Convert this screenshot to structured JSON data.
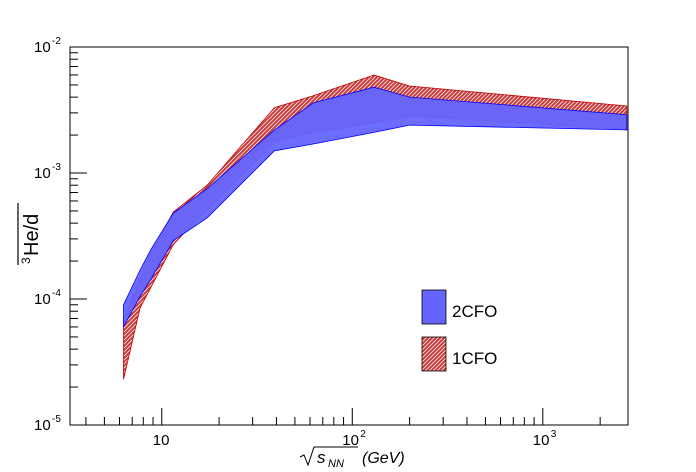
{
  "chart_data": {
    "type": "area",
    "title": "",
    "xscale": "log",
    "yscale": "log",
    "xlim": [
      3.3,
      2800
    ],
    "ylim": [
      1e-05,
      0.01
    ],
    "xlabel_sqrt": "s",
    "xlabel_sub": "NN",
    "xlabel_unit": "(GeV)",
    "ylabel_super": "3",
    "ylabel_main": "He/d",
    "x_ticks": [
      {
        "value": 10,
        "base": "10",
        "exp": ""
      },
      {
        "value": 100,
        "base": "10",
        "exp": "2"
      },
      {
        "value": 1000,
        "base": "10",
        "exp": "3"
      }
    ],
    "y_ticks": [
      {
        "value": 1e-05,
        "base": "10",
        "exp": "-5"
      },
      {
        "value": 0.0001,
        "base": "10",
        "exp": "-4"
      },
      {
        "value": 0.001,
        "base": "10",
        "exp": "-3"
      },
      {
        "value": 0.01,
        "base": "10",
        "exp": "-2"
      }
    ],
    "series": [
      {
        "name": "1CFO",
        "style": "hatched",
        "fill_color": "#d05a5a",
        "line_color": "#c00000",
        "x": [
          6.3,
          7.7,
          8.8,
          11.5,
          17.3,
          39,
          62.4,
          130,
          200,
          2760
        ],
        "upper": [
          6.8e-05,
          0.000145,
          0.00023,
          0.00049,
          0.0008,
          0.0033,
          0.0041,
          0.006,
          0.0049,
          0.0034
        ],
        "lower": [
          2.3e-05,
          8.5e-05,
          0.000125,
          0.00027,
          0.00052,
          0.00175,
          0.0021,
          0.0025,
          0.00285,
          0.0022
        ]
      },
      {
        "name": "2CFO",
        "style": "solid",
        "fill_color": "#6464ff",
        "line_color": "#0000ff",
        "x": [
          6.3,
          7.7,
          8.8,
          11.5,
          17.3,
          39,
          62.4,
          130,
          200,
          2760
        ],
        "upper": [
          9e-05,
          0.00017,
          0.00025,
          0.00048,
          0.00075,
          0.0022,
          0.0036,
          0.0048,
          0.004,
          0.0029
        ],
        "lower": [
          6e-05,
          0.000105,
          0.000145,
          0.00029,
          0.00044,
          0.0015,
          0.0017,
          0.0021,
          0.0024,
          0.0022
        ]
      }
    ],
    "legend": {
      "placement": "bottom-right",
      "entries": [
        {
          "label": "2CFO",
          "series": "2CFO"
        },
        {
          "label": "1CFO",
          "series": "1CFO"
        }
      ]
    }
  }
}
